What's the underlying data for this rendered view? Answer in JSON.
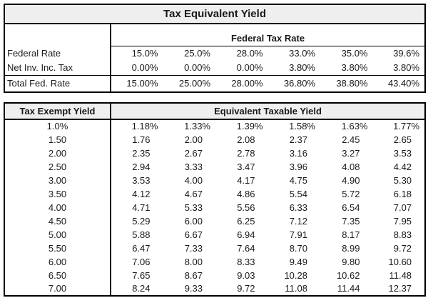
{
  "title": "Tax Equivalent Yield",
  "colors": {
    "header_bg": "#efefef",
    "border": "#000000",
    "text": "#1a1a1a"
  },
  "top_table": {
    "header": "Federal Tax Rate",
    "rows": [
      {
        "label": "Federal Rate",
        "values": [
          "15.0%",
          "25.0%",
          "28.0%",
          "33.0%",
          "35.0%",
          "39.6%"
        ]
      },
      {
        "label": "Net Inv. Inc. Tax",
        "values": [
          "0.00%",
          "0.00%",
          "0.00%",
          "3.80%",
          "3.80%",
          "3.80%"
        ]
      },
      {
        "label": "Total Fed. Rate",
        "values": [
          "15.00%",
          "25.00%",
          "28.00%",
          "36.80%",
          "38.80%",
          "43.40%"
        ]
      }
    ]
  },
  "bottom_table": {
    "col1_header": "Tax Exempt Yield",
    "header": "Equivalent Taxable Yield",
    "rows": [
      {
        "yield": "1.0%",
        "values": [
          "1.18%",
          "1.33%",
          "1.39%",
          "1.58%",
          "1.63%",
          "1.77%"
        ]
      },
      {
        "yield": "1.50",
        "values": [
          "1.76",
          "2.00",
          "2.08",
          "2.37",
          "2.45",
          "2.65"
        ]
      },
      {
        "yield": "2.00",
        "values": [
          "2.35",
          "2.67",
          "2.78",
          "3.16",
          "3.27",
          "3.53"
        ]
      },
      {
        "yield": "2.50",
        "values": [
          "2.94",
          "3.33",
          "3.47",
          "3.96",
          "4.08",
          "4.42"
        ]
      },
      {
        "yield": "3.00",
        "values": [
          "3.53",
          "4.00",
          "4.17",
          "4.75",
          "4.90",
          "5.30"
        ]
      },
      {
        "yield": "3.50",
        "values": [
          "4.12",
          "4.67",
          "4.86",
          "5.54",
          "5.72",
          "6.18"
        ]
      },
      {
        "yield": "4.00",
        "values": [
          "4.71",
          "5.33",
          "5.56",
          "6.33",
          "6.54",
          "7.07"
        ]
      },
      {
        "yield": "4.50",
        "values": [
          "5.29",
          "6.00",
          "6.25",
          "7.12",
          "7.35",
          "7.95"
        ]
      },
      {
        "yield": "5.00",
        "values": [
          "5.88",
          "6.67",
          "6.94",
          "7.91",
          "8.17",
          "8.83"
        ]
      },
      {
        "yield": "5.50",
        "values": [
          "6.47",
          "7.33",
          "7.64",
          "8.70",
          "8.99",
          "9.72"
        ]
      },
      {
        "yield": "6.00",
        "values": [
          "7.06",
          "8.00",
          "8.33",
          "9.49",
          "9.80",
          "10.60"
        ]
      },
      {
        "yield": "6.50",
        "values": [
          "7.65",
          "8.67",
          "9.03",
          "10.28",
          "10.62",
          "11.48"
        ]
      },
      {
        "yield": "7.00",
        "values": [
          "8.24",
          "9.33",
          "9.72",
          "11.08",
          "11.44",
          "12.37"
        ]
      }
    ]
  }
}
